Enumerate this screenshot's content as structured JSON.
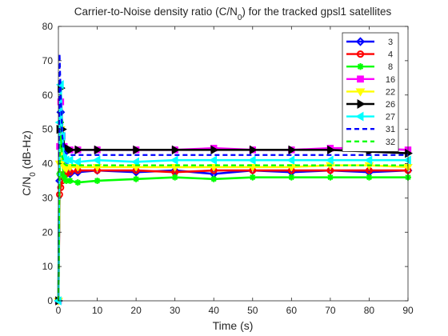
{
  "chart_data": {
    "type": "line",
    "title_main": "Carrier-to-Noise density ratio (C/N",
    "title_sub": "0",
    "title_tail": ") for the tracked gpsl1 satellites",
    "xlabel": "Time (s)",
    "ylabel_main": "C/N",
    "ylabel_sub": "0",
    "ylabel_tail": " (dB-Hz)",
    "xlim": [
      0,
      90
    ],
    "ylim": [
      0,
      80
    ],
    "xticks": [
      0,
      10,
      20,
      30,
      40,
      50,
      60,
      70,
      80,
      90
    ],
    "yticks": [
      0,
      10,
      20,
      30,
      40,
      50,
      60,
      70,
      80
    ],
    "xtick_labels": [
      "0",
      "10",
      "20",
      "30",
      "40",
      "50",
      "60",
      "70",
      "80",
      "90"
    ],
    "ytick_labels": [
      "0",
      "10",
      "20",
      "30",
      "40",
      "50",
      "60",
      "70",
      "80"
    ],
    "grid": false,
    "legend_position": "top-right",
    "series": [
      {
        "name": "3",
        "color": "#0000ff",
        "marker": "diamond",
        "line": "solid",
        "x": [
          0,
          0.3,
          0.6,
          1,
          1.5,
          2,
          3,
          5,
          10,
          20,
          30,
          40,
          50,
          60,
          70,
          80,
          90
        ],
        "y": [
          0,
          35,
          55,
          45,
          40,
          37,
          37,
          37.5,
          38,
          37.5,
          38,
          37,
          38,
          37.5,
          38,
          37.5,
          38
        ]
      },
      {
        "name": "4",
        "color": "#ff0000",
        "marker": "circle",
        "line": "solid",
        "x": [
          0,
          0.3,
          0.6,
          1,
          1.5,
          2,
          3,
          5,
          10,
          20,
          30,
          40,
          50,
          60,
          70,
          80,
          90
        ],
        "y": [
          0,
          31,
          33,
          35,
          37,
          37,
          37.5,
          38,
          38,
          38,
          37.5,
          38,
          38,
          38,
          38,
          38,
          38
        ]
      },
      {
        "name": "8",
        "color": "#00ff00",
        "marker": "star",
        "line": "solid",
        "x": [
          0,
          0.3,
          0.6,
          1,
          1.5,
          2,
          3,
          5,
          10,
          20,
          30,
          40,
          50,
          60,
          70,
          80,
          90
        ],
        "y": [
          0,
          37,
          52,
          40,
          36,
          35,
          35,
          34.5,
          35,
          35.5,
          36,
          35.5,
          36,
          36,
          36,
          36,
          36
        ]
      },
      {
        "name": "16",
        "color": "#ff00ff",
        "marker": "square",
        "line": "solid",
        "x": [
          0,
          0.3,
          0.6,
          1,
          1.5,
          2,
          3,
          5,
          10,
          20,
          30,
          40,
          50,
          60,
          70,
          80,
          90
        ],
        "y": [
          0,
          45,
          58,
          48,
          45,
          44,
          44,
          44,
          44,
          44,
          44,
          44.5,
          44,
          44,
          44.5,
          44.5,
          44
        ]
      },
      {
        "name": "22",
        "color": "#ffff00",
        "marker": "triangle-down",
        "line": "solid",
        "x": [
          0,
          0.3,
          0.6,
          1,
          1.5,
          2,
          3,
          5,
          10,
          20,
          30,
          40,
          50,
          60,
          70,
          80,
          90
        ],
        "y": [
          0,
          40,
          50,
          42,
          39,
          38.5,
          39,
          39,
          39,
          39,
          39,
          39,
          39,
          39,
          39.5,
          39.5,
          39
        ]
      },
      {
        "name": "26",
        "color": "#000000",
        "marker": "triangle-right",
        "line": "solid",
        "x": [
          0,
          0.3,
          0.6,
          1,
          1.5,
          2,
          3,
          5,
          10,
          20,
          30,
          40,
          50,
          60,
          70,
          80,
          90
        ],
        "y": [
          0,
          50,
          62,
          50,
          45,
          44,
          44,
          44,
          44,
          44,
          44,
          44,
          44,
          44,
          44,
          43.5,
          43
        ]
      },
      {
        "name": "27",
        "color": "#00ffff",
        "marker": "triangle-left",
        "line": "solid",
        "x": [
          0,
          0.3,
          0.6,
          1,
          1.5,
          2,
          3,
          5,
          10,
          20,
          30,
          40,
          50,
          60,
          70,
          80,
          90
        ],
        "y": [
          0,
          52,
          63,
          48,
          42,
          41,
          41,
          40.5,
          41,
          40.5,
          41,
          41,
          41,
          41,
          41,
          41,
          41
        ]
      },
      {
        "name": "31",
        "color": "#0000ff",
        "marker": "none",
        "line": "dashed",
        "x": [
          0,
          0.3,
          0.6,
          1,
          1.5,
          2,
          3,
          5,
          10,
          20,
          30,
          40,
          50,
          60,
          70,
          80,
          90
        ],
        "y": [
          0,
          72,
          60,
          48,
          44,
          43,
          42.5,
          42.5,
          42.5,
          42.5,
          42.5,
          42.5,
          42.5,
          42.5,
          42.5,
          42.5,
          42.5
        ]
      },
      {
        "name": "32",
        "color": "#00ff00",
        "marker": "none",
        "line": "dashed",
        "x": [
          0,
          0.3,
          0.6,
          1,
          1.5,
          2,
          3,
          5,
          10,
          20,
          30,
          40,
          50,
          60,
          70,
          80,
          90
        ],
        "y": [
          0,
          38,
          48,
          42,
          40,
          39.5,
          39.5,
          39.5,
          39.5,
          39.5,
          39.5,
          39.5,
          39.5,
          39.5,
          39.5,
          39.5,
          39.5
        ]
      }
    ]
  }
}
